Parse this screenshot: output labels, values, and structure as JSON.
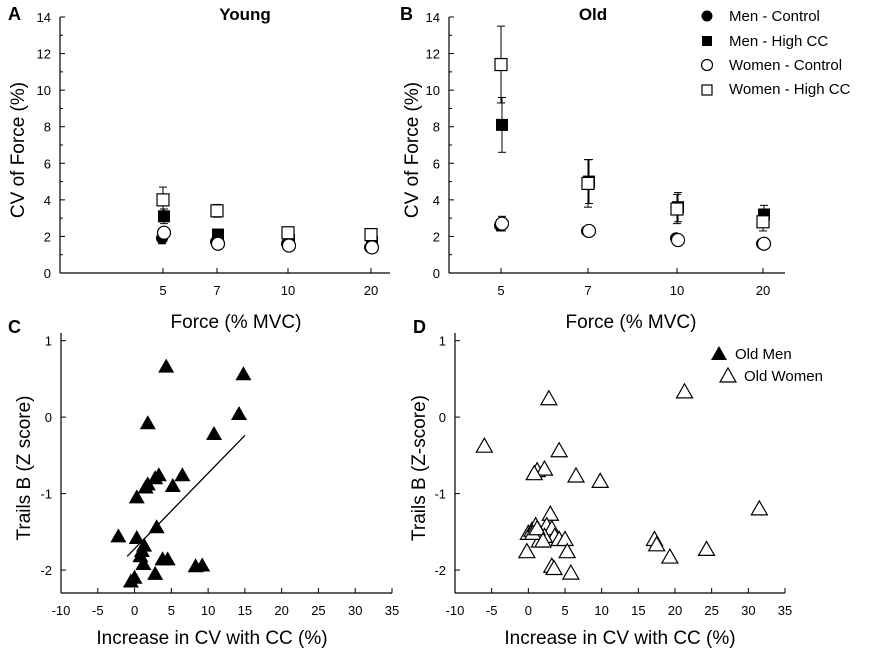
{
  "chart_data": [
    {
      "panel": "A",
      "type": "scatter",
      "title": "Young",
      "xlabel": "Force (% MVC)",
      "ylabel": "CV of Force (%)",
      "categories": [
        "5",
        "7",
        "10",
        "20"
      ],
      "ylim": [
        0,
        14
      ],
      "yticks": [
        0,
        2,
        4,
        6,
        8,
        10,
        12,
        14
      ],
      "series": [
        {
          "name": "Men - Control",
          "marker": "circle-filled",
          "values": [
            1.9,
            1.7,
            1.6,
            1.4
          ],
          "errors": [
            0.3,
            0.2,
            0.15,
            0.15
          ]
        },
        {
          "name": "Men - High CC",
          "marker": "square-filled",
          "values": [
            3.1,
            2.1,
            1.8,
            1.7
          ],
          "errors": [
            0.4,
            0.3,
            0.2,
            0.2
          ]
        },
        {
          "name": "Women - Control",
          "marker": "circle-open",
          "values": [
            2.2,
            1.6,
            1.5,
            1.4
          ],
          "errors": [
            0.2,
            0.15,
            0.1,
            0.1
          ]
        },
        {
          "name": "Women - High CC",
          "marker": "square-open",
          "values": [
            4.0,
            3.4,
            2.2,
            2.1
          ],
          "errors": [
            0.7,
            0.35,
            0.2,
            0.15
          ]
        }
      ]
    },
    {
      "panel": "B",
      "type": "scatter",
      "title": "Old",
      "xlabel": "Force (% MVC)",
      "ylabel": "CV of Force (%)",
      "categories": [
        "5",
        "7",
        "10",
        "20"
      ],
      "ylim": [
        0,
        14
      ],
      "yticks": [
        0,
        2,
        4,
        6,
        8,
        10,
        12,
        14
      ],
      "series": [
        {
          "name": "Men - Control",
          "marker": "circle-filled",
          "values": [
            2.6,
            2.3,
            1.9,
            1.6
          ],
          "errors": [
            0.3,
            0.2,
            0.2,
            0.2
          ]
        },
        {
          "name": "Men - High CC",
          "marker": "square-filled",
          "values": [
            8.1,
            5.0,
            3.6,
            3.2
          ],
          "errors": [
            1.5,
            1.2,
            0.8,
            0.5
          ]
        },
        {
          "name": "Women - Control",
          "marker": "circle-open",
          "values": [
            2.7,
            2.3,
            1.8,
            1.6
          ],
          "errors": [
            0.4,
            0.2,
            0.2,
            0.2
          ]
        },
        {
          "name": "Women - High CC",
          "marker": "square-open",
          "values": [
            11.4,
            4.9,
            3.5,
            2.8
          ],
          "errors": [
            2.1,
            1.3,
            0.8,
            0.5
          ]
        }
      ],
      "legend": [
        "Men - Control",
        "Men - High CC",
        "Women - Control",
        "Women - High CC"
      ]
    },
    {
      "panel": "C",
      "type": "scatter",
      "xlabel": "Increase in CV with CC (%)",
      "ylabel": "Trails B (Z score)",
      "xlim": [
        -10,
        35
      ],
      "ylim": [
        -2.3,
        1.1
      ],
      "xticks": [
        -10,
        -5,
        0,
        5,
        10,
        15,
        20,
        25,
        30,
        35
      ],
      "yticks": [
        -2,
        -1,
        0,
        1
      ],
      "series": [
        {
          "name": "Old Men",
          "marker": "triangle-filled",
          "x": [
            4.3,
            14.8,
            14.2,
            1.8,
            10.8,
            6.5,
            3.3,
            2.8,
            1.8,
            1.5,
            0.3,
            5.2,
            -2.2,
            0.3,
            1.3,
            3.0,
            3.8,
            4.5,
            8.3,
            9.2,
            0.8,
            1.2,
            2.8,
            0.0,
            -0.5,
            1.0
          ],
          "y": [
            0.66,
            0.56,
            0.04,
            -0.08,
            -0.22,
            -0.76,
            -0.76,
            -0.8,
            -0.88,
            -0.92,
            -1.05,
            -0.9,
            -1.56,
            -1.58,
            -1.68,
            -1.44,
            -1.86,
            -1.86,
            -1.95,
            -1.94,
            -1.82,
            -1.92,
            -2.05,
            -2.1,
            -2.15,
            -1.75
          ]
        }
      ],
      "trendline": {
        "x": [
          -1,
          15
        ],
        "y": [
          -1.82,
          -0.24
        ]
      }
    },
    {
      "panel": "D",
      "type": "scatter",
      "xlabel": "Increase in CV with CC (%)",
      "ylabel": "Trails B (Z-score)",
      "xlim": [
        -10,
        35
      ],
      "ylim": [
        -2.3,
        1.1
      ],
      "xticks": [
        -10,
        -5,
        0,
        5,
        10,
        15,
        20,
        25,
        30,
        35
      ],
      "yticks": [
        -2,
        -1,
        0,
        1
      ],
      "series": [
        {
          "name": "Old Women",
          "marker": "triangle-open",
          "x": [
            21.3,
            2.8,
            -6.0,
            4.2,
            1.2,
            2.2,
            6.5,
            9.8,
            31.5,
            17.2,
            17.5,
            19.3,
            24.3,
            0.8,
            3.0,
            2.5,
            3.2,
            3.6,
            4.2,
            5.0,
            5.3,
            3.2,
            3.5,
            5.8,
            -0.2,
            0.0,
            0.5,
            1.0,
            1.8,
            2.2,
            1.5,
            0.6,
            1.2,
            2.0
          ],
          "y": [
            0.33,
            0.24,
            -0.38,
            -0.44,
            -0.7,
            -0.68,
            -0.77,
            -0.84,
            -1.2,
            -1.6,
            -1.67,
            -1.83,
            -1.73,
            -0.74,
            -1.27,
            -1.42,
            -1.46,
            -1.56,
            -1.6,
            -1.6,
            -1.76,
            -1.95,
            -1.98,
            -2.04,
            -1.76,
            -1.52,
            -1.48,
            -1.42,
            -1.6,
            -1.56,
            -1.62,
            -1.52,
            -1.46,
            -1.62
          ]
        }
      ],
      "legend": [
        "Old Men",
        "Old Women"
      ]
    }
  ]
}
